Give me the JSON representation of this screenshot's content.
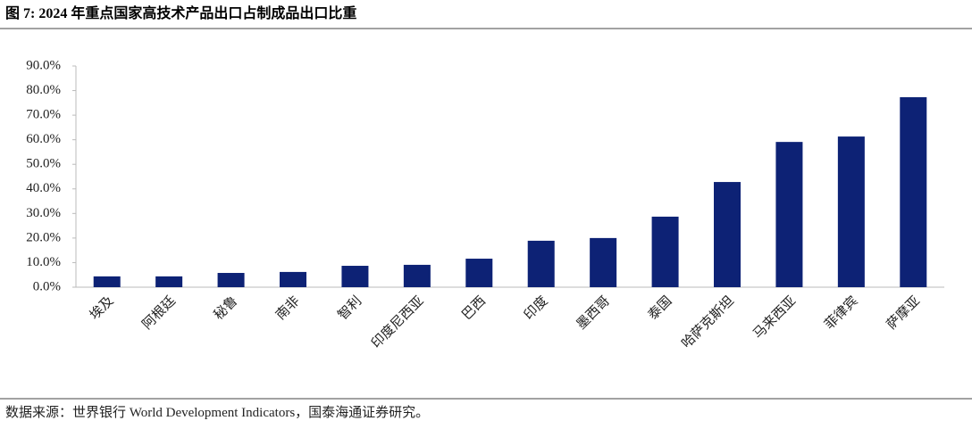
{
  "chart_data": {
    "type": "bar",
    "title": "图 7: 2024 年重点国家高技术产品出口占制成品出口比重",
    "source": "数据来源：世界银行 World Development Indicators，国泰海通证券研究。",
    "categories": [
      "埃及",
      "阿根廷",
      "秘鲁",
      "南非",
      "智利",
      "印度尼西亚",
      "巴西",
      "印度",
      "墨西哥",
      "泰国",
      "哈萨克斯坦",
      "马来西亚",
      "菲律宾",
      "萨摩亚"
    ],
    "values": [
      4.4,
      4.4,
      5.8,
      6.2,
      8.7,
      9.1,
      11.6,
      18.9,
      20.0,
      28.7,
      42.8,
      59.1,
      61.3,
      77.3
    ],
    "color": "#0d2275",
    "ylim": [
      0,
      90
    ],
    "yticks": [
      {
        "value": 0,
        "label": "0.0%"
      },
      {
        "value": 10,
        "label": "10.0%"
      },
      {
        "value": 20,
        "label": "20.0%"
      },
      {
        "value": 30,
        "label": "30.0%"
      },
      {
        "value": 40,
        "label": "40.0%"
      },
      {
        "value": 50,
        "label": "50.0%"
      },
      {
        "value": 60,
        "label": "60.0%"
      },
      {
        "value": 70,
        "label": "70.0%"
      },
      {
        "value": 80,
        "label": "80.0%"
      },
      {
        "value": 90,
        "label": "90.0%"
      }
    ],
    "grid": false
  }
}
